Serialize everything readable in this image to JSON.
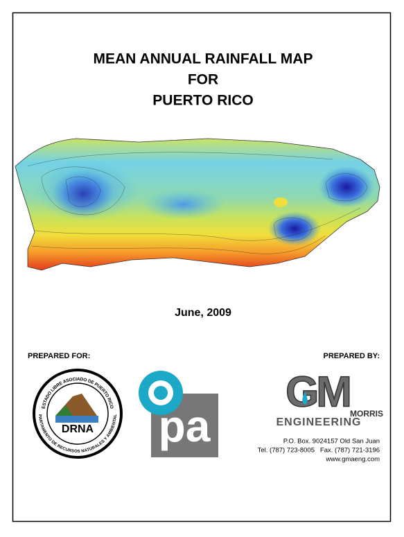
{
  "header": {
    "title_lines": [
      "MEAN ANNUAL RAINFALL MAP",
      "FOR",
      "PUERTO RICO"
    ]
  },
  "date": "June, 2009",
  "prepared_for": {
    "label": "PREPARED FOR:",
    "drna_logo": {
      "ring_top": "ESTADO LIBRE ASOCIADO DE PUERTO RICO",
      "ring_bottom": "DEPARTAMENTO DE RECURSOS NATURALES Y AMBIENTALES",
      "name": "DRNA"
    },
    "opa_logo": {
      "letters": "pa"
    }
  },
  "prepared_by": {
    "label": "PREPARED BY:",
    "logo": {
      "letters": "GM",
      "name": "MORRIS",
      "tagline": "ENGINEERING"
    },
    "address": [
      "P.O. Box. 9024157 Old San Juan",
      "Tel. (787) 723-8005   Fax. (787) 721-3196",
      "www.gmaeng.com"
    ]
  }
}
